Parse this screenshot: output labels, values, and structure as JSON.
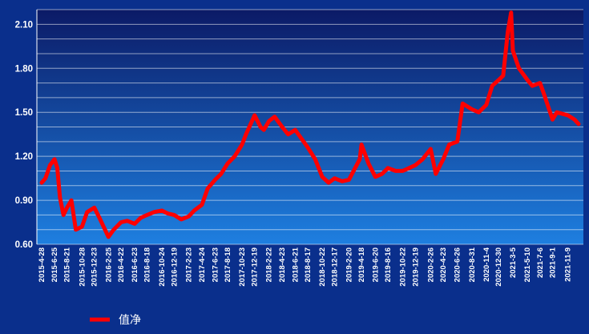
{
  "chart_data": {
    "type": "line",
    "title": "",
    "xlabel": "",
    "ylabel": "",
    "ylim": [
      0.6,
      2.2
    ],
    "y_ticks": [
      "0.60",
      "0.90",
      "1.20",
      "1.50",
      "1.80",
      "2.10"
    ],
    "y_tick_values": [
      0.6,
      0.9,
      1.2,
      1.5,
      1.8,
      2.1
    ],
    "x_ticks": [
      "2015-4-28",
      "2015-6-25",
      "2015-8-21",
      "2015-10-28",
      "2015-12-23",
      "2016-2-25",
      "2016-4-22",
      "2016-6-23",
      "2016-8-18",
      "2016-10-24",
      "2016-12-19",
      "2017-2-23",
      "2017-4-24",
      "2017-6-23",
      "2017-8-18",
      "2017-10-23",
      "2017-12-19",
      "2018-2-22",
      "2018-4-23",
      "2018-6-21",
      "2018-8-17",
      "2018-10-22",
      "2018-12-17",
      "2019-2-20",
      "2019-4-18",
      "2019-6-20",
      "2019-8-16",
      "2019-10-22",
      "2019-12-19",
      "2020-2-26",
      "2020-4-23",
      "2020-6-26",
      "2020-8-31",
      "2020-11-4",
      "2020-12-30",
      "2021-3-5",
      "2021-5-10",
      "2021-7-6",
      "2021-9-1",
      "2021-11-9"
    ],
    "grid": true,
    "legend": "bottom-left",
    "colors": {
      "background": "#0a2f8c",
      "plot_top": "#0b1a66",
      "plot_bottom": "#1e7fe0",
      "line": "#ff0000",
      "grid": "#ffffff"
    },
    "series": [
      {
        "name": "值净",
        "x": [
          "2015-4-28",
          "2015-5-15",
          "2015-6-5",
          "2015-6-25",
          "2015-7-8",
          "2015-7-20",
          "2015-8-5",
          "2015-8-21",
          "2015-9-10",
          "2015-9-30",
          "2015-10-28",
          "2015-11-20",
          "2015-12-23",
          "2016-1-15",
          "2016-2-25",
          "2016-3-20",
          "2016-4-22",
          "2016-5-20",
          "2016-6-23",
          "2016-7-20",
          "2016-8-18",
          "2016-9-20",
          "2016-10-24",
          "2016-11-20",
          "2016-12-19",
          "2017-1-20",
          "2017-2-23",
          "2017-3-20",
          "2017-4-24",
          "2017-5-20",
          "2017-6-23",
          "2017-7-20",
          "2017-8-18",
          "2017-9-20",
          "2017-10-23",
          "2017-11-10",
          "2017-12-19",
          "2018-1-15",
          "2018-1-30",
          "2018-2-22",
          "2018-3-20",
          "2018-4-23",
          "2018-5-20",
          "2018-6-21",
          "2018-7-20",
          "2018-8-17",
          "2018-9-20",
          "2018-10-22",
          "2018-11-20",
          "2018-12-17",
          "2019-1-20",
          "2019-2-20",
          "2019-3-20",
          "2019-4-10",
          "2019-4-18",
          "2019-5-20",
          "2019-6-20",
          "2019-7-20",
          "2019-8-16",
          "2019-9-20",
          "2019-10-22",
          "2019-11-20",
          "2019-12-19",
          "2020-1-20",
          "2020-2-26",
          "2020-3-20",
          "2020-4-23",
          "2020-5-20",
          "2020-6-26",
          "2020-7-20",
          "2020-8-31",
          "2020-10-1",
          "2020-11-4",
          "2020-12-1",
          "2020-12-30",
          "2021-1-20",
          "2021-2-10",
          "2021-2-25",
          "2021-3-5",
          "2021-4-1",
          "2021-5-10",
          "2021-6-1",
          "2021-7-6",
          "2021-7-25",
          "2021-9-1",
          "2021-9-20",
          "2021-11-9",
          "2021-12-10",
          "2021-12-28"
        ],
        "values": [
          1.02,
          1.05,
          1.14,
          1.18,
          1.12,
          0.92,
          0.8,
          0.85,
          0.9,
          0.7,
          0.72,
          0.82,
          0.85,
          0.78,
          0.65,
          0.7,
          0.75,
          0.76,
          0.74,
          0.78,
          0.8,
          0.82,
          0.83,
          0.81,
          0.8,
          0.77,
          0.79,
          0.83,
          0.87,
          0.98,
          1.04,
          1.08,
          1.15,
          1.2,
          1.28,
          1.35,
          1.48,
          1.4,
          1.38,
          1.44,
          1.47,
          1.4,
          1.35,
          1.38,
          1.32,
          1.26,
          1.18,
          1.06,
          1.02,
          1.05,
          1.03,
          1.04,
          1.12,
          1.18,
          1.28,
          1.15,
          1.06,
          1.08,
          1.12,
          1.1,
          1.1,
          1.12,
          1.14,
          1.18,
          1.25,
          1.08,
          1.18,
          1.28,
          1.3,
          1.56,
          1.52,
          1.5,
          1.55,
          1.68,
          1.72,
          1.75,
          2.05,
          2.18,
          1.92,
          1.8,
          1.72,
          1.68,
          1.7,
          1.62,
          1.45,
          1.5,
          1.48,
          1.45,
          1.42
        ]
      }
    ]
  }
}
